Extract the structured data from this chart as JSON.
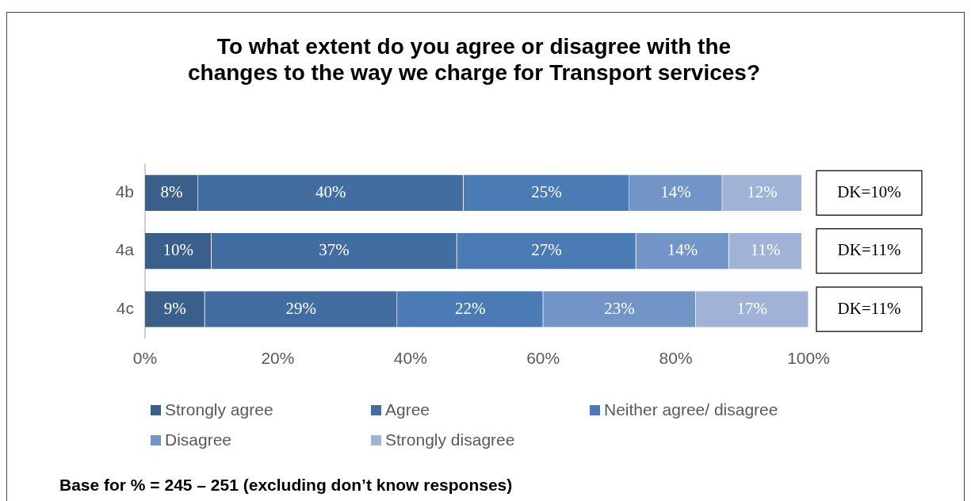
{
  "chart_data": {
    "type": "bar",
    "orientation": "horizontal",
    "stacked": true,
    "title": "To what extent do you agree or disagree with the changes to the way we charge for Transport services?",
    "categories": [
      "4b",
      "4a",
      "4c"
    ],
    "series": [
      {
        "name": "Strongly agree",
        "color": "#3a5f8b",
        "values": [
          8,
          10,
          9
        ],
        "value_labels": [
          "8%",
          "10%",
          "9%"
        ]
      },
      {
        "name": "Agree",
        "color": "#426da0",
        "values": [
          40,
          37,
          29
        ],
        "value_labels": [
          "40%",
          "37%",
          "29%"
        ]
      },
      {
        "name": "Neither agree/ disagree",
        "color": "#4a7bb5",
        "values": [
          25,
          27,
          22
        ],
        "value_labels": [
          "25%",
          "27%",
          "22%"
        ]
      },
      {
        "name": "Disagree",
        "color": "#7394c6",
        "values": [
          14,
          14,
          23
        ],
        "value_labels": [
          "14%",
          "14%",
          "23%"
        ]
      },
      {
        "name": "Strongly disagree",
        "color": "#a0b3d6",
        "values": [
          12,
          11,
          17
        ],
        "value_labels": [
          "12%",
          "11%",
          "17%"
        ]
      }
    ],
    "xlim": [
      0,
      100
    ],
    "xticks": [
      {
        "value": 0,
        "label": "0%"
      },
      {
        "value": 20,
        "label": "20%"
      },
      {
        "value": 40,
        "label": "40%"
      },
      {
        "value": 60,
        "label": "60%"
      },
      {
        "value": 80,
        "label": "80%"
      },
      {
        "value": 100,
        "label": "100%"
      }
    ],
    "grid": false,
    "legend": "bottom",
    "annotations": [
      "DK=10%",
      "DK=11%",
      "DK=11%",
      "Base for % = 245 – 251 (excluding don’t know responses)"
    ]
  }
}
